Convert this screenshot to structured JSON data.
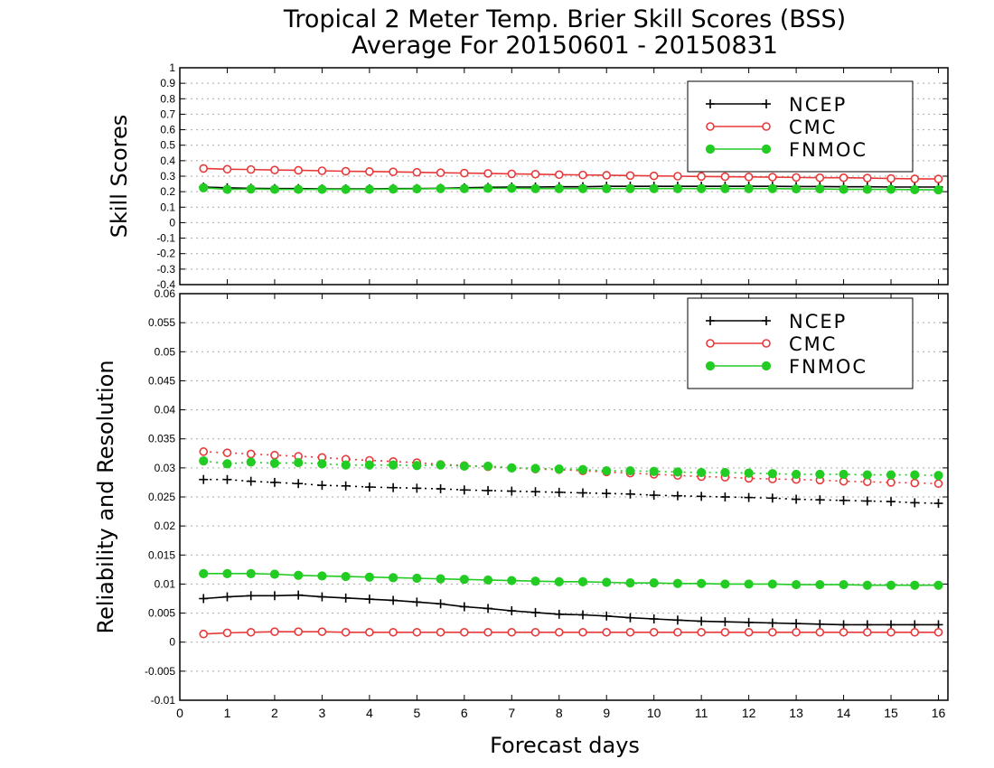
{
  "title_line1": "Tropical 2 Meter Temp. Brier Skill Scores (BSS)",
  "title_line2": "Average For 20150601 - 20150831",
  "xlabel": "Forecast days",
  "colors": {
    "NCEP": "#000000",
    "CMC": "#e8393a",
    "FNMOC": "#22cc22"
  },
  "chart_data": [
    {
      "type": "line",
      "ylabel": "Skill Scores",
      "ylim": [
        -0.4,
        1
      ],
      "xlim": [
        0,
        16.2
      ],
      "yticks": [
        "1",
        "0.9",
        "0.8",
        "0.7",
        "0.6",
        "0.5",
        "0.4",
        "0.3",
        "0.2",
        "0.1",
        "0",
        "-0.1",
        "-0.2",
        "-0.3",
        "-0.4"
      ],
      "xticks": [
        "0",
        "1",
        "2",
        "3",
        "4",
        "5",
        "6",
        "7",
        "8",
        "9",
        "10",
        "11",
        "12",
        "13",
        "14",
        "15",
        "16"
      ],
      "grid": true,
      "legend_position": "top-right",
      "legend": [
        "NCEP",
        "CMC",
        "FNMOC"
      ],
      "x": [
        0.5,
        1,
        1.5,
        2,
        2.5,
        3,
        3.5,
        4,
        4.5,
        5,
        5.5,
        6,
        6.5,
        7,
        7.5,
        8,
        8.5,
        9,
        9.5,
        10,
        10.5,
        11,
        11.5,
        12,
        12.5,
        13,
        13.5,
        14,
        14.5,
        15,
        15.5,
        16
      ],
      "series": [
        {
          "name": "NCEP",
          "marker": "plus",
          "style": "solid",
          "values": [
            0.23,
            0.225,
            0.222,
            0.22,
            0.22,
            0.218,
            0.218,
            0.218,
            0.22,
            0.22,
            0.222,
            0.225,
            0.228,
            0.23,
            0.23,
            0.232,
            0.232,
            0.235,
            0.235,
            0.235,
            0.235,
            0.235,
            0.235,
            0.235,
            0.235,
            0.233,
            0.233,
            0.232,
            0.232,
            0.23,
            0.23,
            0.23
          ]
        },
        {
          "name": "CMC",
          "marker": "open-circle",
          "style": "solid",
          "values": [
            0.35,
            0.345,
            0.343,
            0.34,
            0.338,
            0.335,
            0.332,
            0.33,
            0.328,
            0.325,
            0.322,
            0.32,
            0.318,
            0.315,
            0.313,
            0.31,
            0.308,
            0.306,
            0.304,
            0.302,
            0.3,
            0.298,
            0.297,
            0.295,
            0.294,
            0.292,
            0.29,
            0.29,
            0.288,
            0.285,
            0.283,
            0.282
          ]
        },
        {
          "name": "FNMOC",
          "marker": "filled-circle",
          "style": "solid",
          "values": [
            0.225,
            0.215,
            0.217,
            0.215,
            0.215,
            0.215,
            0.215,
            0.215,
            0.217,
            0.218,
            0.22,
            0.22,
            0.222,
            0.222,
            0.22,
            0.22,
            0.22,
            0.22,
            0.22,
            0.22,
            0.22,
            0.22,
            0.22,
            0.22,
            0.22,
            0.218,
            0.218,
            0.215,
            0.215,
            0.215,
            0.213,
            0.212
          ]
        }
      ]
    },
    {
      "type": "line",
      "ylabel": "Reliability and Resolution",
      "ylim": [
        -0.01,
        0.06
      ],
      "xlim": [
        0,
        16.2
      ],
      "yticks": [
        "0.06",
        "0.055",
        "0.05",
        "0.045",
        "0.04",
        "0.035",
        "0.03",
        "0.025",
        "0.02",
        "0.015",
        "0.01",
        "0.005",
        "0",
        "-0.005",
        "-0.01"
      ],
      "xticks": [
        "0",
        "1",
        "2",
        "3",
        "4",
        "5",
        "6",
        "7",
        "8",
        "9",
        "10",
        "11",
        "12",
        "13",
        "14",
        "15",
        "16"
      ],
      "grid": true,
      "legend_position": "top-right",
      "legend": [
        "NCEP",
        "CMC",
        "FNMOC"
      ],
      "x": [
        0.5,
        1,
        1.5,
        2,
        2.5,
        3,
        3.5,
        4,
        4.5,
        5,
        5.5,
        6,
        6.5,
        7,
        7.5,
        8,
        8.5,
        9,
        9.5,
        10,
        10.5,
        11,
        11.5,
        12,
        12.5,
        13,
        13.5,
        14,
        14.5,
        15,
        15.5,
        16
      ],
      "series": [
        {
          "name": "NCEP",
          "group": "resolution",
          "marker": "plus",
          "style": "dotted",
          "values": [
            0.028,
            0.028,
            0.0277,
            0.0275,
            0.0273,
            0.027,
            0.0269,
            0.0267,
            0.0266,
            0.0265,
            0.0264,
            0.0262,
            0.0261,
            0.026,
            0.0259,
            0.0258,
            0.0257,
            0.0256,
            0.0255,
            0.0253,
            0.0252,
            0.0251,
            0.025,
            0.0249,
            0.0248,
            0.0246,
            0.0245,
            0.0244,
            0.0243,
            0.0242,
            0.024,
            0.0239
          ]
        },
        {
          "name": "CMC",
          "group": "resolution",
          "marker": "open-circle",
          "style": "dotted",
          "values": [
            0.0328,
            0.0326,
            0.0324,
            0.0322,
            0.032,
            0.0318,
            0.0315,
            0.0313,
            0.0311,
            0.0309,
            0.0306,
            0.0304,
            0.0302,
            0.03,
            0.0298,
            0.0297,
            0.0295,
            0.0293,
            0.0291,
            0.0289,
            0.0287,
            0.0285,
            0.0284,
            0.0282,
            0.0281,
            0.028,
            0.0279,
            0.0277,
            0.0276,
            0.0275,
            0.0274,
            0.0273
          ]
        },
        {
          "name": "FNMOC",
          "group": "resolution",
          "marker": "filled-circle",
          "style": "dotted",
          "values": [
            0.0312,
            0.0307,
            0.031,
            0.0308,
            0.0309,
            0.0307,
            0.0305,
            0.0305,
            0.0305,
            0.0304,
            0.0305,
            0.0303,
            0.0303,
            0.03,
            0.0299,
            0.0298,
            0.0297,
            0.0295,
            0.0295,
            0.0294,
            0.0293,
            0.0292,
            0.0292,
            0.0291,
            0.029,
            0.0289,
            0.0289,
            0.0289,
            0.0288,
            0.0288,
            0.0288,
            0.0287
          ]
        },
        {
          "name": "NCEP",
          "group": "reliability",
          "marker": "plus",
          "style": "solid",
          "values": [
            0.0075,
            0.0078,
            0.008,
            0.008,
            0.0081,
            0.0078,
            0.0076,
            0.0074,
            0.0072,
            0.0069,
            0.0066,
            0.0061,
            0.0058,
            0.0054,
            0.0051,
            0.0048,
            0.0047,
            0.0045,
            0.0042,
            0.004,
            0.0038,
            0.0036,
            0.0035,
            0.0034,
            0.0033,
            0.0032,
            0.0031,
            0.003,
            0.003,
            0.003,
            0.003,
            0.003
          ]
        },
        {
          "name": "CMC",
          "group": "reliability",
          "marker": "open-circle",
          "style": "solid",
          "values": [
            0.0014,
            0.0016,
            0.0017,
            0.0018,
            0.0018,
            0.0018,
            0.0017,
            0.0017,
            0.0017,
            0.0017,
            0.0017,
            0.0017,
            0.0017,
            0.0017,
            0.0017,
            0.0017,
            0.0017,
            0.0017,
            0.0017,
            0.0017,
            0.0017,
            0.0017,
            0.0017,
            0.0017,
            0.0017,
            0.0017,
            0.0017,
            0.0017,
            0.0017,
            0.0017,
            0.0017,
            0.0017
          ]
        },
        {
          "name": "FNMOC",
          "group": "reliability",
          "marker": "filled-circle",
          "style": "solid",
          "values": [
            0.0118,
            0.0118,
            0.0118,
            0.0117,
            0.0115,
            0.0114,
            0.0113,
            0.0112,
            0.0111,
            0.011,
            0.0109,
            0.0108,
            0.0107,
            0.0106,
            0.0105,
            0.0104,
            0.0104,
            0.0103,
            0.0102,
            0.0102,
            0.0101,
            0.0101,
            0.01,
            0.01,
            0.01,
            0.0099,
            0.0099,
            0.0099,
            0.0098,
            0.0098,
            0.0098,
            0.0098
          ]
        }
      ]
    }
  ]
}
